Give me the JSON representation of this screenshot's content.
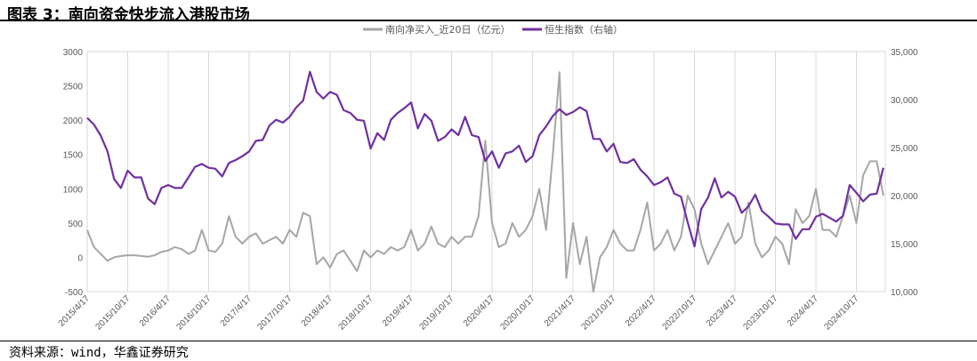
{
  "title": "图表 3：南向资金快步流入港股市场",
  "source": "资料来源：wind，华鑫证券研究",
  "chart_data": {
    "type": "line",
    "start": "2015/4",
    "frequency": "monthly",
    "x_tick_labels": [
      "2015/4/17",
      "2015/10/17",
      "2016/4/17",
      "2016/10/17",
      "2017/4/17",
      "2017/10/17",
      "2018/4/17",
      "2018/10/17",
      "2019/4/17",
      "2019/10/17",
      "2020/4/17",
      "2020/10/17",
      "2021/4/17",
      "2021/10/17",
      "2022/4/17",
      "2022/10/17",
      "2023/4/17",
      "2023/10/17",
      "2024/4/17",
      "2024/10/17"
    ],
    "y_left": {
      "range": [
        -500,
        3000
      ],
      "ticks": [
        "-500",
        "0",
        "500",
        "1000",
        "1500",
        "2000",
        "2500",
        "3000"
      ]
    },
    "y_right": {
      "range": [
        10000,
        35000
      ],
      "ticks": [
        "10,000",
        "15,000",
        "20,000",
        "25,000",
        "30,000",
        "35,000"
      ]
    },
    "grid": "vertical",
    "legend_position": "top-right",
    "series": [
      {
        "name": "南向净买入_近20日（亿元）",
        "axis": "left",
        "color": "#a6a6a6",
        "values": [
          400,
          150,
          50,
          -50,
          0,
          20,
          30,
          30,
          20,
          10,
          30,
          80,
          100,
          150,
          120,
          50,
          100,
          400,
          100,
          80,
          200,
          600,
          300,
          200,
          300,
          350,
          200,
          250,
          300,
          200,
          400,
          300,
          650,
          600,
          -100,
          0,
          -150,
          50,
          100,
          -50,
          -200,
          100,
          0,
          100,
          50,
          150,
          100,
          150,
          400,
          100,
          200,
          450,
          200,
          150,
          300,
          200,
          300,
          300,
          600,
          1700,
          500,
          150,
          200,
          500,
          300,
          400,
          600,
          1000,
          400,
          1500,
          2700,
          -300,
          500,
          -100,
          300,
          -500,
          0,
          150,
          400,
          200,
          100,
          100,
          400,
          800,
          100,
          200,
          400,
          100,
          300,
          900,
          700,
          200,
          -100,
          100,
          300,
          500,
          200,
          300,
          800,
          200,
          0,
          100,
          300,
          200,
          -100,
          700,
          500,
          600,
          1000,
          400,
          400,
          300,
          600,
          900,
          500,
          1200,
          1400,
          1400,
          900
        ]
      },
      {
        "name": "恒生指数（右轴）",
        "axis": "right",
        "color": "#7030a0",
        "values": [
          28100,
          27400,
          26250,
          24600,
          21700,
          20800,
          22600,
          21900,
          21900,
          19700,
          19100,
          20800,
          21100,
          20800,
          20800,
          21900,
          23000,
          23300,
          22900,
          22800,
          22000,
          23400,
          23700,
          24100,
          24600,
          25700,
          25800,
          27300,
          27900,
          27600,
          28200,
          29200,
          29900,
          32900,
          30800,
          30100,
          30800,
          30500,
          28900,
          28600,
          27900,
          27800,
          24900,
          26500,
          25800,
          27900,
          28600,
          29100,
          29700,
          27000,
          28500,
          27800,
          25700,
          26100,
          26900,
          26300,
          28200,
          26300,
          26100,
          23600,
          24600,
          22900,
          24400,
          24600,
          25200,
          23500,
          24100,
          26300,
          27200,
          28300,
          29000,
          28400,
          28700,
          29200,
          28800,
          25900,
          25900,
          24600,
          25400,
          23500,
          23400,
          23800,
          22700,
          22000,
          21100,
          21400,
          21900,
          20200,
          19900,
          17200,
          14700,
          18600,
          19800,
          21800,
          19800,
          20400,
          19900,
          18200,
          18900,
          20100,
          18400,
          17800,
          17100,
          17000,
          17000,
          15500,
          16500,
          16500,
          17800,
          18100,
          17700,
          17300,
          17900,
          21100,
          20300,
          19400,
          20100,
          20200,
          22900
        ]
      }
    ]
  }
}
